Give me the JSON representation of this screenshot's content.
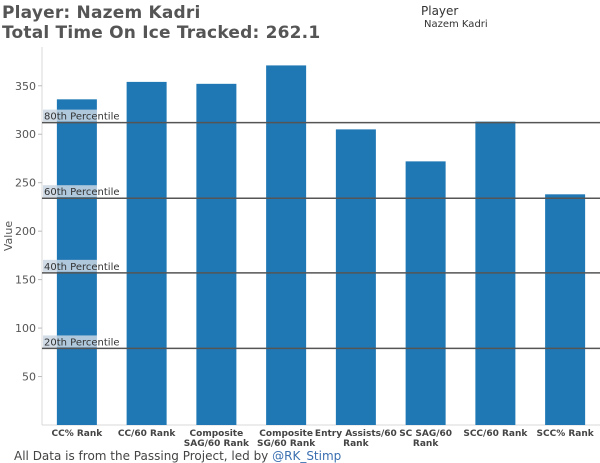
{
  "header": {
    "line1": "Player: Nazem Kadri",
    "line2": "Total Time On Ice Tracked: 262.1"
  },
  "legend": {
    "title": "Player",
    "item": "Nazem Kadri"
  },
  "footer": {
    "text": "All Data is from the Passing Project, led by ",
    "link": "@RK_Stimp"
  },
  "colors": {
    "bar": "#1f77b4",
    "reference_line": "#555555",
    "band_label_bg": "#c9d6e3"
  },
  "chart_data": {
    "type": "bar",
    "categories": [
      [
        "CC% Rank"
      ],
      [
        "CC/60 Rank"
      ],
      [
        "Composite",
        "SAG/60 Rank"
      ],
      [
        "Composite",
        "SG/60 Rank"
      ],
      [
        "Entry Assists/60",
        "Rank"
      ],
      [
        "SC SAG/60",
        "Rank"
      ],
      [
        "SCC/60 Rank"
      ],
      [
        "SCC% Rank"
      ]
    ],
    "values": [
      336,
      354,
      352,
      371,
      305,
      272,
      313,
      238
    ],
    "ylabel": "Value",
    "ylim": [
      0,
      390
    ],
    "yticks": [
      50,
      100,
      150,
      200,
      250,
      300,
      350
    ],
    "reference_lines": [
      {
        "label": "80th Percentile",
        "value": 312
      },
      {
        "label": "60th Percentile",
        "value": 234
      },
      {
        "label": "40th Percentile",
        "value": 157
      },
      {
        "label": "20th Percentile",
        "value": 79
      }
    ]
  }
}
